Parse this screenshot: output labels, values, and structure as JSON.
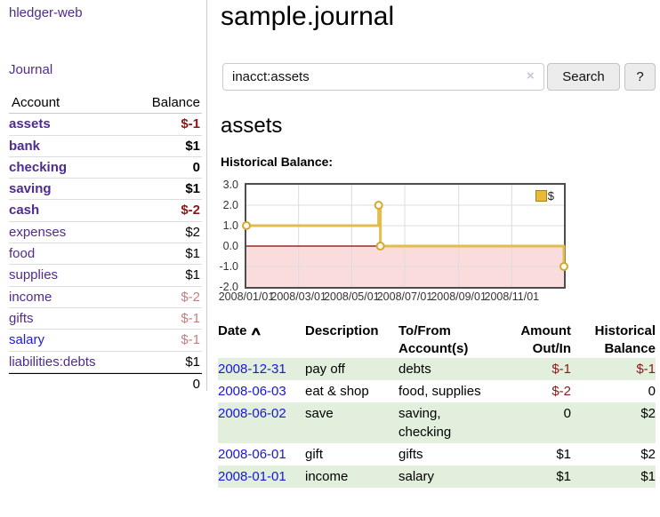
{
  "sidebar": {
    "app_title": "hledger-web",
    "journal_link": "Journal",
    "accounts_table": {
      "header_account": "Account",
      "header_balance": "Balance",
      "rows": [
        {
          "name": "assets",
          "balance": "$-1"
        },
        {
          "name": "bank",
          "balance": "$1"
        },
        {
          "name": "checking",
          "balance": "0"
        },
        {
          "name": "saving",
          "balance": "$1"
        },
        {
          "name": "cash",
          "balance": "$-2"
        },
        {
          "name": "expenses",
          "balance": "$2"
        },
        {
          "name": "food",
          "balance": "$1"
        },
        {
          "name": "supplies",
          "balance": "$1"
        },
        {
          "name": "income",
          "balance": "$-2"
        },
        {
          "name": "gifts",
          "balance": "$-1"
        },
        {
          "name": "salary",
          "balance": "$-1"
        },
        {
          "name": "liabilities:debts",
          "balance": "$1"
        }
      ],
      "total": "0"
    }
  },
  "main": {
    "title": "sample.journal",
    "search": {
      "value": "inacct:assets",
      "clear_icon": "×",
      "search_button": "Search",
      "help_button": "?"
    },
    "account_heading": "assets",
    "chart_label": "Historical Balance:",
    "register_table": {
      "headers": {
        "date": "Date",
        "sort_icon": "∧",
        "description": "Description",
        "tofrom": "To/From Account(s)",
        "amount": "Amount Out/In",
        "balance": "Historical Balance"
      },
      "rows": [
        {
          "date": "2008-12-31",
          "description": "pay off",
          "accounts": "debts",
          "amount": "$-1",
          "balance": "$-1"
        },
        {
          "date": "2008-06-03",
          "description": "eat & shop",
          "accounts": "food, supplies",
          "amount": "$-2",
          "balance": "0"
        },
        {
          "date": "2008-06-02",
          "description": "save",
          "accounts": "saving, checking",
          "amount": "0",
          "balance": "$2"
        },
        {
          "date": "2008-06-01",
          "description": "gift",
          "accounts": "gifts",
          "amount": "$1",
          "balance": "$2"
        },
        {
          "date": "2008-01-01",
          "description": "income",
          "accounts": "salary",
          "amount": "$1",
          "balance": "$1"
        }
      ]
    }
  },
  "chart_data": {
    "type": "line",
    "step": true,
    "title": "Historical Balance:",
    "series": [
      {
        "name": "$",
        "points": [
          {
            "x": "2008-01-01",
            "y": 1
          },
          {
            "x": "2008-06-01",
            "y": 2
          },
          {
            "x": "2008-06-03",
            "y": 0
          },
          {
            "x": "2008-12-31",
            "y": -1
          }
        ]
      }
    ],
    "xlim": [
      "2008-01-01",
      "2008-12-31"
    ],
    "ylim": [
      -2,
      3
    ],
    "yticks": [
      3.0,
      2.0,
      1.0,
      0.0,
      -1.0,
      -2.0
    ],
    "xticks": [
      {
        "date": "2008-01-01",
        "label": "2008/01/01"
      },
      {
        "date": "2008-03-01",
        "label": "2008/03/01"
      },
      {
        "date": "2008-05-01",
        "label": "2008/05/01"
      },
      {
        "date": "2008-07-01",
        "label": "2008/07/01"
      },
      {
        "date": "2008-09-01",
        "label": "2008/09/01"
      },
      {
        "date": "2008-11-01",
        "label": "2008/11/01"
      }
    ],
    "legend": {
      "label": "$",
      "position": "top-right"
    },
    "grid": true,
    "line_color": "#e2bd4b",
    "marker_color": "#d2a92f",
    "zero_line_color": "#8b0000",
    "negative_region_color": "#fbdcdc"
  },
  "colors": {
    "link_purple": "#4f2b8f",
    "link_blue": "#1b1be0",
    "negative_strong": "#8c1616",
    "negative_soft": "#c08080",
    "row_green": "#e3efdd",
    "chart_gold": "#e2bd4b"
  }
}
